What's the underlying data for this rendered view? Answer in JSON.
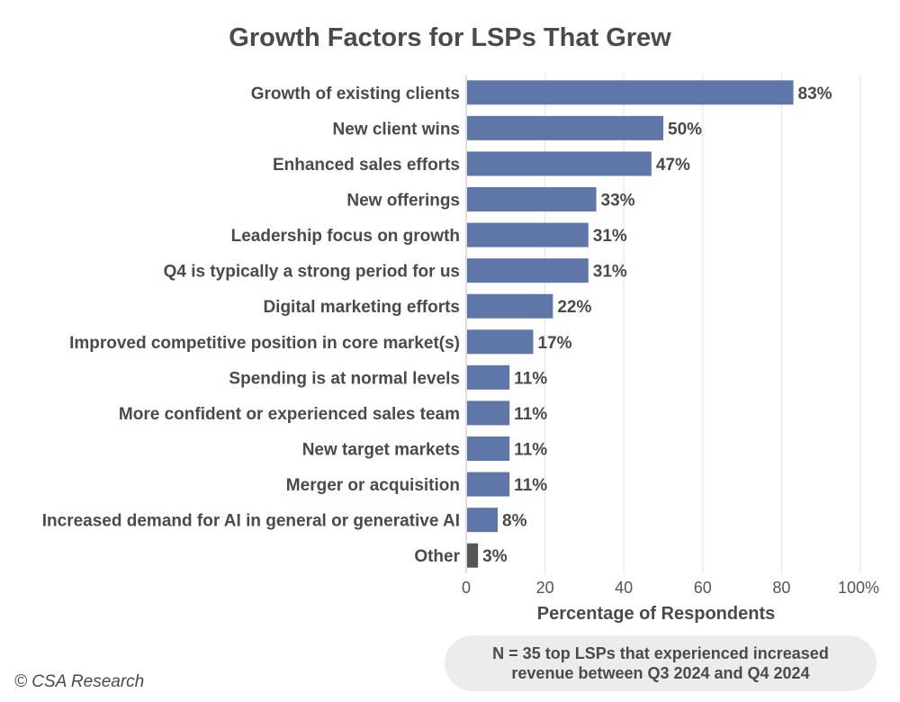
{
  "chart_data": {
    "type": "bar",
    "orientation": "horizontal",
    "title": "Growth Factors for LSPs That Grew",
    "xlabel": "Percentage of Respondents",
    "ylabel": "",
    "xlim": [
      0,
      100
    ],
    "xticks": [
      "0",
      "20",
      "40",
      "60",
      "80",
      "100%"
    ],
    "grid": true,
    "categories": [
      "Growth of existing clients",
      "New client wins",
      "Enhanced sales efforts",
      "New offerings",
      "Leadership focus on growth",
      "Q4 is typically a strong period for us",
      "Digital marketing efforts",
      "Improved competitive position in core market(s)",
      "Spending is at normal levels",
      "More confident or experienced sales team",
      "New target markets",
      "Merger or acquisition",
      "Increased demand for AI in general or generative AI",
      "Other"
    ],
    "values": [
      83,
      50,
      47,
      33,
      31,
      31,
      22,
      17,
      11,
      11,
      11,
      11,
      8,
      3
    ],
    "value_labels": [
      "83%",
      "50%",
      "47%",
      "33%",
      "31%",
      "31%",
      "22%",
      "17%",
      "11%",
      "11%",
      "11%",
      "11%",
      "8%",
      "3%"
    ],
    "colors": {
      "bar": "#5f76a8",
      "other_bar": "#555555",
      "grid": "#e3e3e3"
    }
  },
  "note": {
    "line1": "N = 35 top LSPs that experienced increased",
    "line2": "revenue between Q3 2024 and Q4 2024"
  },
  "copyright": "© CSA Research"
}
